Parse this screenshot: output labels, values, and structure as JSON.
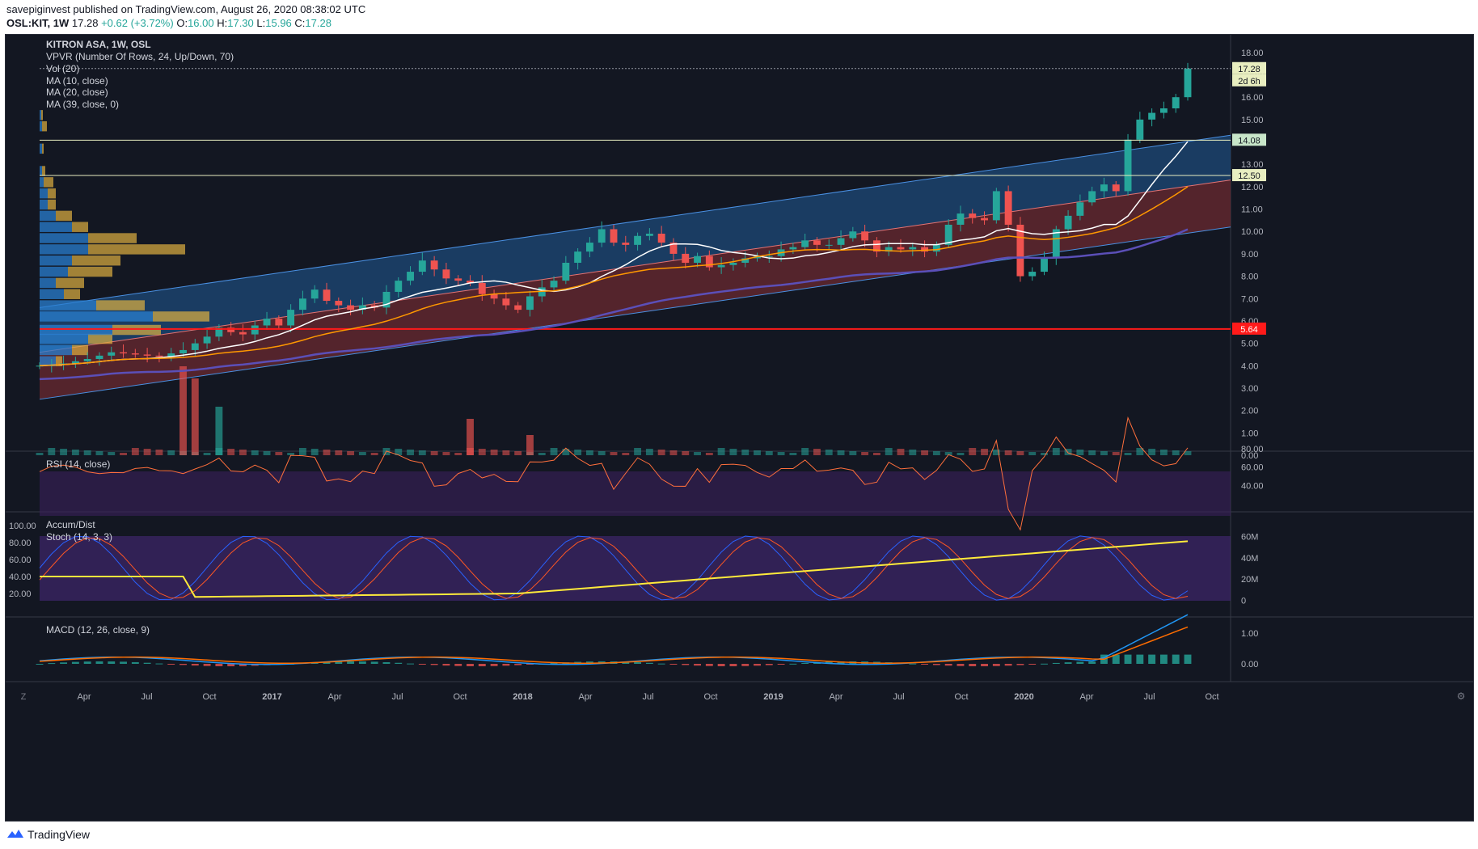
{
  "header": {
    "publisher_line": "savepiginvest published on TradingView.com, August 26, 2020 08:38:02 UTC",
    "symbol": "OSL:KIT, 1W",
    "last": "17.28",
    "change": "+0.62 (+3.72%)",
    "o_label": "O:",
    "o_value": "16.00",
    "h_label": "H:",
    "h_value": "17.30",
    "l_label": "L:",
    "l_value": "15.96",
    "c_label": "C:",
    "c_value": "17.28"
  },
  "legend": {
    "title": "KITRON ASA, 1W, OSL",
    "vpvr": "VPVR (Number Of Rows, 24, Up/Down, 70)",
    "vol": "Vol (20)",
    "ma10": "MA (10, close)",
    "ma20": "MA (20, close)",
    "ma39": "MA (39, close, 0)",
    "rsi": "RSI (14, close)",
    "accum": "Accum/Dist",
    "stoch": "Stoch (14, 3, 3)",
    "macd": "MACD (12, 26, close, 9)"
  },
  "price_labels": {
    "last": "17.28",
    "countdown": "2d 6h",
    "resistance": "14.08",
    "support": "12.50",
    "red_line": "5.64"
  },
  "footer": {
    "brand": "TradingView",
    "z_button": "Z",
    "scale_button": "⚙"
  },
  "colors": {
    "up": "#26a69a",
    "down": "#ef5350",
    "bg": "#131722",
    "ma10": "#ffffff",
    "ma20": "#ff9800",
    "ma39": "#5b4fb8",
    "channel_top": "#1e4a78",
    "channel_bottom": "#6b2a30",
    "accum": "#ffeb3b",
    "stoch_k": "#2962ff",
    "stoch_d": "#ff5722",
    "rsi_line": "#ff6f3c",
    "macd_line": "#2196f3",
    "signal_line": "#ff6d00"
  },
  "chart_data": {
    "type": "candlestick",
    "title": "KITRON ASA, 1W, OSL",
    "x_ticks": [
      "Apr",
      "Jul",
      "Oct",
      "2017",
      "Apr",
      "Jul",
      "Oct",
      "2018",
      "Apr",
      "Jul",
      "Oct",
      "2019",
      "Apr",
      "Jul",
      "Oct",
      "2020",
      "Apr",
      "Jul",
      "Oct"
    ],
    "price_axis": {
      "ticks": [
        "0.00",
        "1.00",
        "2.00",
        "3.00",
        "4.00",
        "5.00",
        "6.00",
        "7.00",
        "8.00",
        "9.00",
        "10.00",
        "11.00",
        "12.00",
        "13.00",
        "14.00",
        "15.00",
        "16.00",
        "17.00",
        "18.00"
      ],
      "ylim": [
        0,
        18.5
      ]
    },
    "rsi_axis": {
      "ticks": [
        "40.00",
        "60.00",
        "80.00"
      ],
      "levels": [
        30,
        70
      ]
    },
    "stoch_axis": {
      "ticks": [
        "20.00",
        "40.00",
        "60.00",
        "80.00",
        "100.00"
      ]
    },
    "accum_axis": {
      "ticks": [
        "0",
        "20M",
        "40M",
        "60M"
      ]
    },
    "macd_axis": {
      "ticks": [
        "0.00",
        "1.00"
      ]
    },
    "horizontal_levels": {
      "resistance": 14.08,
      "support": 12.5,
      "red": 5.64,
      "last": 17.28
    },
    "channel": {
      "start_x": 0,
      "end_x": 1,
      "upper": [
        6.6,
        14.3
      ],
      "middle": [
        4.6,
        12.3
      ],
      "lower": [
        2.5,
        10.2
      ]
    },
    "price_path": [
      [
        0,
        4.0
      ],
      [
        2,
        4.1
      ],
      [
        4,
        4.3
      ],
      [
        6,
        4.6
      ],
      [
        8,
        4.5
      ],
      [
        10,
        4.4
      ],
      [
        12,
        4.7
      ],
      [
        14,
        5.3
      ],
      [
        15,
        5.7
      ],
      [
        16,
        5.5
      ],
      [
        17,
        5.4
      ],
      [
        18,
        5.8
      ],
      [
        19,
        6.1
      ],
      [
        20,
        5.8
      ],
      [
        21,
        6.5
      ],
      [
        22,
        7.0
      ],
      [
        23,
        7.4
      ],
      [
        24,
        6.9
      ],
      [
        26,
        6.5
      ],
      [
        27,
        6.7
      ],
      [
        28,
        6.6
      ],
      [
        29,
        7.3
      ],
      [
        30,
        7.8
      ],
      [
        31,
        8.2
      ],
      [
        32,
        8.7
      ],
      [
        33,
        8.3
      ],
      [
        34,
        7.9
      ],
      [
        35,
        7.8
      ],
      [
        36,
        7.7
      ],
      [
        37,
        7.2
      ],
      [
        38,
        7.0
      ],
      [
        39,
        6.7
      ],
      [
        40,
        6.5
      ],
      [
        41,
        7.1
      ],
      [
        42,
        7.5
      ],
      [
        43,
        7.8
      ],
      [
        44,
        8.6
      ],
      [
        45,
        9.1
      ],
      [
        46,
        9.5
      ],
      [
        47,
        10.1
      ],
      [
        48,
        9.5
      ],
      [
        49,
        9.4
      ],
      [
        50,
        9.8
      ],
      [
        51,
        9.9
      ],
      [
        52,
        9.5
      ],
      [
        53,
        9.0
      ],
      [
        54,
        8.6
      ],
      [
        55,
        8.9
      ],
      [
        56,
        8.4
      ],
      [
        57,
        8.5
      ],
      [
        58,
        8.6
      ],
      [
        59,
        8.8
      ],
      [
        60,
        8.9
      ],
      [
        61,
        8.9
      ],
      [
        62,
        9.2
      ],
      [
        63,
        9.3
      ],
      [
        64,
        9.6
      ],
      [
        65,
        9.4
      ],
      [
        66,
        9.4
      ],
      [
        67,
        9.7
      ],
      [
        68,
        10.0
      ],
      [
        69,
        9.6
      ],
      [
        70,
        9.1
      ],
      [
        71,
        9.3
      ],
      [
        72,
        9.2
      ],
      [
        73,
        9.3
      ],
      [
        74,
        9.1
      ],
      [
        75,
        9.4
      ],
      [
        76,
        10.3
      ],
      [
        77,
        10.8
      ],
      [
        78,
        10.6
      ],
      [
        79,
        10.5
      ],
      [
        80,
        11.8
      ],
      [
        81,
        10.3
      ],
      [
        82,
        8.0
      ],
      [
        83,
        8.2
      ],
      [
        84,
        8.8
      ],
      [
        85,
        10.1
      ],
      [
        86,
        10.7
      ],
      [
        87,
        11.3
      ],
      [
        88,
        11.8
      ],
      [
        89,
        12.1
      ],
      [
        90,
        11.8
      ],
      [
        91,
        14.1
      ],
      [
        92,
        15.0
      ],
      [
        93,
        15.3
      ],
      [
        94,
        15.5
      ],
      [
        95,
        16.0
      ],
      [
        96,
        17.28
      ]
    ]
  }
}
